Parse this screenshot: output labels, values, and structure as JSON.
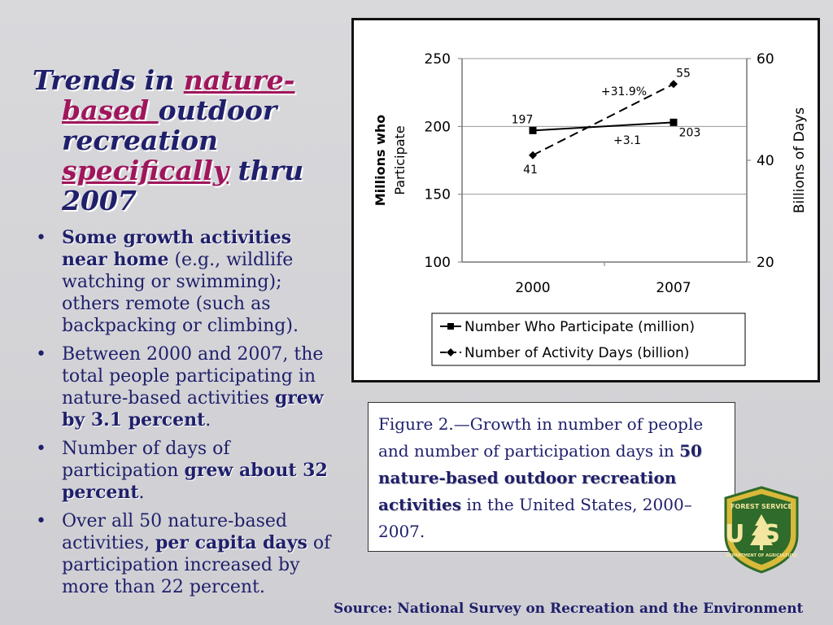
{
  "title": {
    "part1": "Trends in ",
    "highlight1": "nature-",
    "highlight2": "based ",
    "part2": "outdoor recreation ",
    "highlight3": "specifically",
    "part3": " thru 2007"
  },
  "bullets": [
    {
      "bold": "Some growth activities near home",
      "text": " (e.g., wildlife watching or swimming); others remote (such as backpacking or climbing)."
    },
    {
      "pre": "Between 2000 and 2007, the total people participating in nature-based activities ",
      "bold": "grew by 3.1 percent",
      "post": "."
    },
    {
      "pre": "Number of days of participation ",
      "bold": "grew about 32 percent",
      "post": "."
    },
    {
      "pre": "Over all 50 nature-based activities, ",
      "bold": "per capita days",
      "post": " of participation increased by more than 22 percent."
    }
  ],
  "chart_data": {
    "type": "line",
    "x": [
      "2000",
      "2007"
    ],
    "left_axis": {
      "label": "Millions who Participate",
      "ticks": [
        100,
        150,
        200,
        250
      ],
      "ylim": [
        100,
        250
      ]
    },
    "right_axis": {
      "label": "Billions of Days",
      "ticks": [
        20,
        40,
        60
      ],
      "ylim": [
        20,
        60
      ]
    },
    "series": [
      {
        "name": "Number Who Participate (million)",
        "axis": "left",
        "values": [
          197,
          203
        ],
        "labels": [
          "197",
          "203"
        ],
        "style": "solid",
        "marker": "square"
      },
      {
        "name": "Number of Activity Days (billion)",
        "axis": "right",
        "values": [
          41,
          55
        ],
        "labels": [
          "41",
          "55"
        ],
        "style": "dashed",
        "marker": "diamond"
      }
    ],
    "annotations": [
      "+31.9%",
      "+3.1"
    ],
    "grid": true,
    "legend": "bottom"
  },
  "caption": {
    "part1": "Figure 2.—Growth in number of people and number of participation days in ",
    "bold": "50 nature-based outdoor recreation activities",
    "part2": " in the United States, 2000–2007."
  },
  "source": "Source: National Survey on Recreation and the Environment",
  "logo": {
    "top_text": "FOREST SERVICE",
    "letters": "US",
    "bottom_text": "DEPARTMENT OF AGRICULTURE",
    "colors": {
      "green": "#2f6b2a",
      "gold": "#d9b93a"
    }
  }
}
